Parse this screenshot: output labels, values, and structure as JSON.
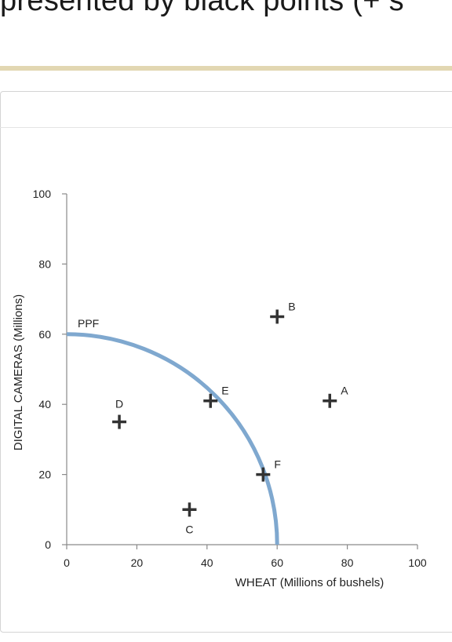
{
  "header": {
    "text": "presented by black points (+ s"
  },
  "chart_data": {
    "type": "scatter",
    "xlabel": "WHEAT (Millions of bushels)",
    "ylabel": "DIGITAL CAMERAS (Millions)",
    "xlim": [
      0,
      100
    ],
    "ylim": [
      0,
      100
    ],
    "xticks": [
      0,
      20,
      40,
      60,
      80,
      100
    ],
    "yticks": [
      0,
      20,
      40,
      60,
      80,
      100
    ],
    "grid": false,
    "curve": {
      "label": "PPF",
      "color": "#7fa8cf",
      "shape": "quarter-ellipse",
      "x_intercept": 60,
      "y_intercept": 60
    },
    "points": [
      {
        "label": "A",
        "x": 75,
        "y": 41
      },
      {
        "label": "B",
        "x": 60,
        "y": 65
      },
      {
        "label": "C",
        "x": 35,
        "y": 10
      },
      {
        "label": "D",
        "x": 15,
        "y": 35
      },
      {
        "label": "E",
        "x": 41,
        "y": 41
      },
      {
        "label": "F",
        "x": 56,
        "y": 20
      }
    ],
    "marker": "plus",
    "marker_color": "#333333"
  }
}
